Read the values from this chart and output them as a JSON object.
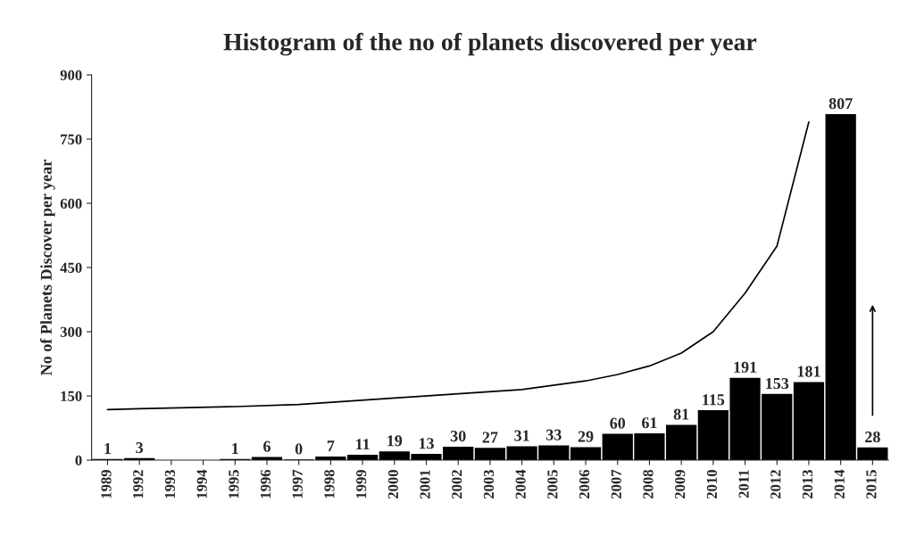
{
  "chart_data": {
    "type": "bar",
    "title": "Histogram of the no of planets discovered per year",
    "ylabel": "No of Planets Discover per year",
    "categories": [
      "1989",
      "1992",
      "1993",
      "1994",
      "1995",
      "1996",
      "1997",
      "1998",
      "1999",
      "2000",
      "2001",
      "2002",
      "2003",
      "2004",
      "2005",
      "2006",
      "2007",
      "2008",
      "2009",
      "2010",
      "2011",
      "2012",
      "2013",
      "2014",
      "2015"
    ],
    "series": [
      {
        "color": "#000000",
        "values": [
          1,
          3,
          null,
          null,
          1,
          6,
          0,
          7,
          11,
          19,
          13,
          30,
          27,
          31,
          33,
          29,
          60,
          61,
          81,
          115,
          191,
          153,
          181,
          807,
          28
        ],
        "value_labels": [
          "1",
          "3",
          null,
          null,
          "1",
          "6",
          "0",
          "7",
          "11",
          "19",
          "13",
          "30",
          "27",
          "31",
          "33",
          "29",
          "60",
          "61",
          "81",
          "115",
          "191",
          "153",
          "181",
          "807",
          "28"
        ]
      },
      {
        "type": "line",
        "color": "#000000",
        "values": [
          118,
          120,
          null,
          null,
          125,
          null,
          130,
          null,
          null,
          145,
          null,
          155,
          null,
          165,
          null,
          185,
          200,
          220,
          250,
          300,
          390,
          500,
          790,
          null,
          null
        ]
      }
    ],
    "ylim": [
      0,
      900
    ],
    "yticks": [
      0,
      150,
      300,
      450,
      600,
      750,
      900
    ],
    "grid": false,
    "legend": false
  }
}
